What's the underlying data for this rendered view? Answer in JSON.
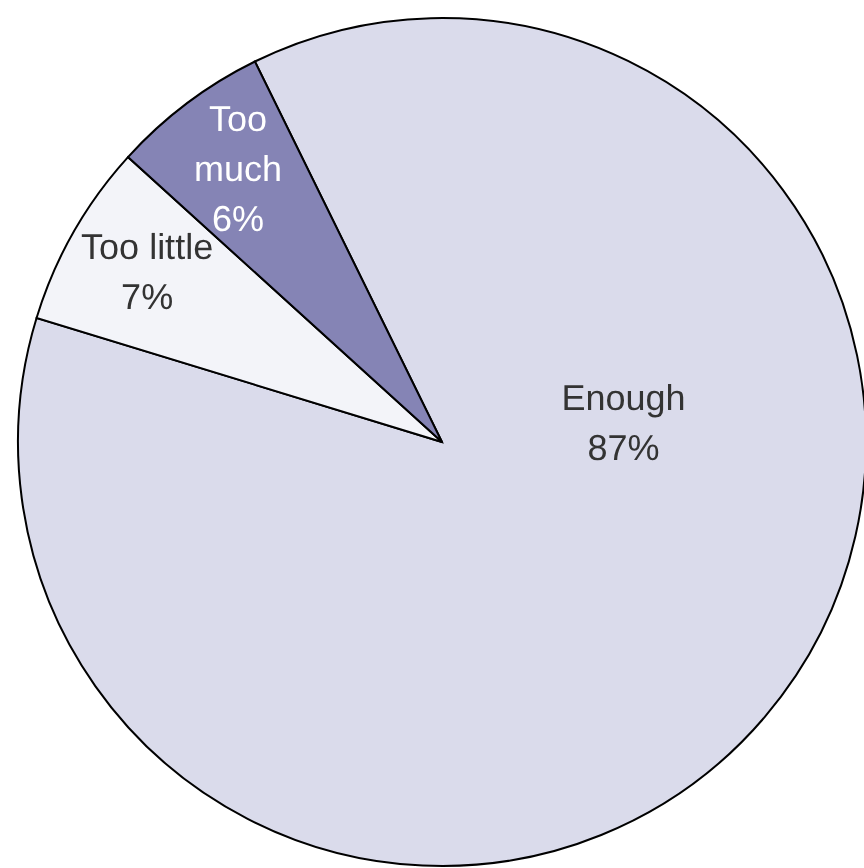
{
  "chart_data": {
    "type": "pie",
    "categories": [
      "Enough",
      "Too little",
      "Too much"
    ],
    "values": [
      87,
      7,
      6
    ],
    "colors": [
      "#dadbeb",
      "#f3f4f9",
      "#8584b5"
    ],
    "value_labels": [
      "87%",
      "7%",
      "6%"
    ]
  }
}
